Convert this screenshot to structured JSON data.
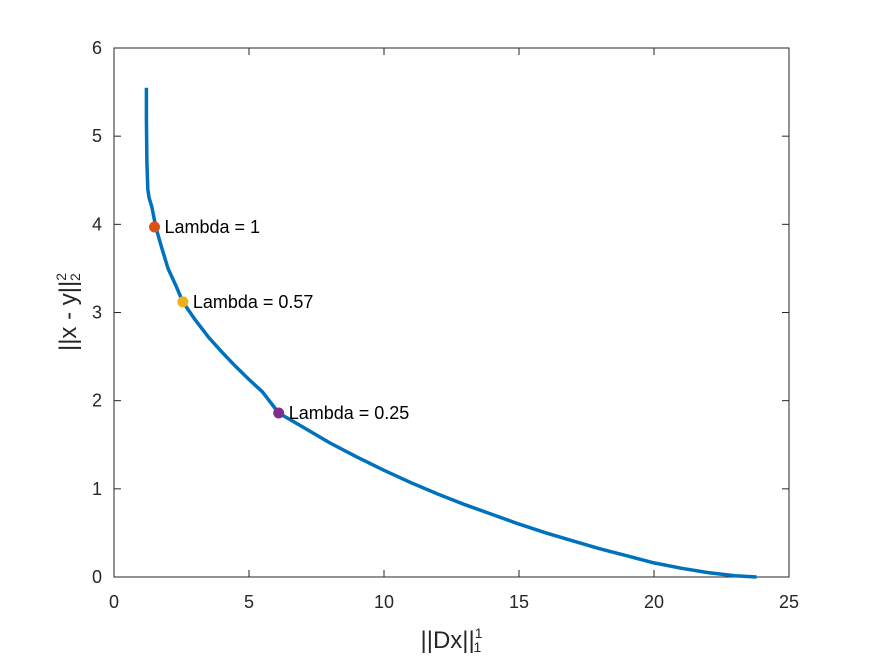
{
  "chart_data": {
    "type": "line",
    "title": "",
    "xlabel": {
      "base": "||Dx||",
      "sup": "1",
      "sub": "1"
    },
    "ylabel": {
      "base": "||x - y||",
      "sup": "2",
      "sub": "2"
    },
    "xlim": [
      0,
      25
    ],
    "ylim": [
      0,
      6
    ],
    "xticks": [
      0,
      5,
      10,
      15,
      20,
      25
    ],
    "yticks": [
      0,
      1,
      2,
      3,
      4,
      5,
      6
    ],
    "grid": false,
    "legend": "none",
    "colors": {
      "curve": "#0072BD",
      "axis": "#262626"
    },
    "series": [
      {
        "color": "#0072BD",
        "x": [
          1.2,
          1.2,
          1.22,
          1.25,
          1.3,
          1.4,
          1.55,
          1.75,
          2.0,
          2.3,
          2.55,
          3.0,
          3.5,
          4.0,
          4.5,
          5.0,
          5.5,
          6.1,
          7.0,
          8.0,
          9.0,
          10.0,
          11.0,
          12.0,
          13.0,
          14.0,
          15.0,
          16.0,
          17.0,
          18.0,
          19.0,
          20.0,
          21.0,
          22.0,
          23.0,
          23.8
        ],
        "y": [
          5.55,
          5.2,
          4.7,
          4.4,
          4.3,
          4.2,
          3.97,
          3.75,
          3.5,
          3.3,
          3.12,
          2.92,
          2.72,
          2.55,
          2.39,
          2.24,
          2.1,
          1.86,
          1.7,
          1.52,
          1.36,
          1.21,
          1.07,
          0.94,
          0.82,
          0.71,
          0.6,
          0.5,
          0.41,
          0.32,
          0.24,
          0.16,
          0.1,
          0.05,
          0.015,
          0.0
        ]
      }
    ],
    "annotations": [
      {
        "x": 1.5,
        "y": 3.97,
        "label": "Lambda = 1",
        "color": "#D95319"
      },
      {
        "x": 2.55,
        "y": 3.12,
        "label": "Lambda = 0.57",
        "color": "#EDB120"
      },
      {
        "x": 6.1,
        "y": 1.86,
        "label": "Lambda = 0.25",
        "color": "#7E2F8E"
      }
    ]
  }
}
